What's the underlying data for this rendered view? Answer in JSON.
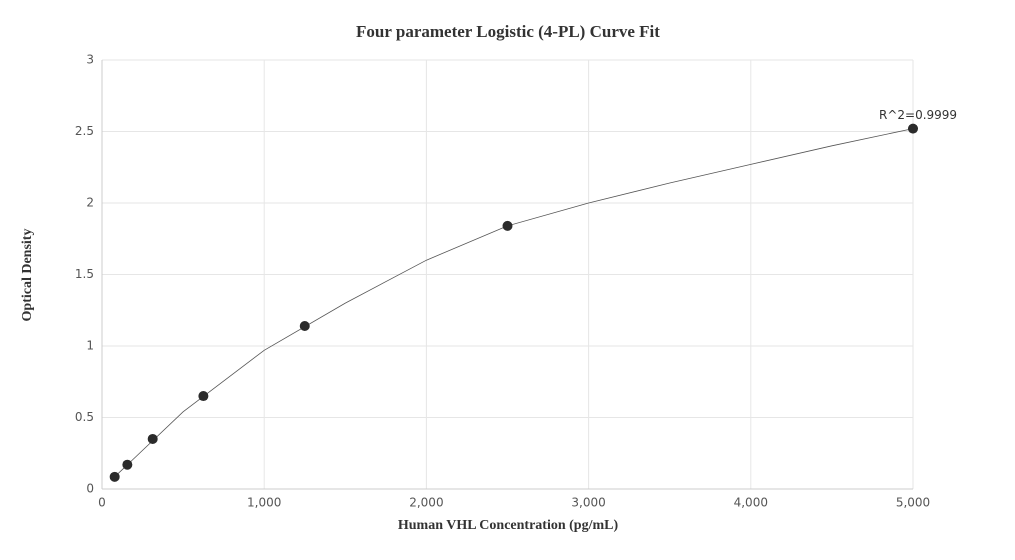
{
  "chart_data": {
    "type": "scatter",
    "title": "Four parameter Logistic (4-PL) Curve Fit",
    "x_label": "Human VHL Concentration (pg/mL)",
    "y_label": "Optical Density",
    "annotation": "R^2=0.9999",
    "points": {
      "x": [
        78.125,
        156.25,
        312.5,
        625,
        1250,
        2500,
        5000
      ],
      "values": [
        0.085,
        0.17,
        0.35,
        0.65,
        1.14,
        1.84,
        2.52
      ],
      "color": "#2b2b2b"
    },
    "curve": {
      "x": [
        78.125,
        500,
        1000,
        1500,
        2000,
        2500,
        3000,
        3500,
        4000,
        4500,
        5000
      ],
      "values": [
        0.085,
        0.54,
        0.97,
        1.3,
        1.6,
        1.84,
        2.0,
        2.14,
        2.27,
        2.4,
        2.52
      ],
      "color": "#555555"
    },
    "xlim": [
      0,
      5000
    ],
    "xticks": [
      0,
      {
        "value": 1000,
        "label": "1,000"
      },
      {
        "value": 2000,
        "label": "2,000"
      },
      {
        "value": 3000,
        "label": "3,000"
      },
      {
        "value": 4000,
        "label": "4,000"
      },
      {
        "value": 5000,
        "label": "5,000"
      }
    ],
    "ylim": [
      0,
      3
    ],
    "yticks": [
      0,
      0.5,
      1,
      1.5,
      2,
      2.5,
      3
    ],
    "grid": true
  }
}
